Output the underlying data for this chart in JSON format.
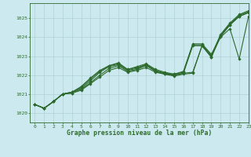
{
  "background_color": "#cde9f0",
  "grid_color": "#a8cccc",
  "line_color": "#2d6a2d",
  "title": "Graphe pression niveau de la mer (hPa)",
  "xlim": [
    -0.5,
    23
  ],
  "ylim": [
    1019.5,
    1025.8
  ],
  "yticks": [
    1020,
    1021,
    1022,
    1023,
    1024,
    1025
  ],
  "xticks": [
    0,
    1,
    2,
    3,
    4,
    5,
    6,
    7,
    8,
    9,
    10,
    11,
    12,
    13,
    14,
    15,
    16,
    17,
    18,
    19,
    20,
    21,
    22,
    23
  ],
  "lines": [
    [
      1020.45,
      1020.25,
      1020.6,
      1021.0,
      1021.05,
      1021.2,
      1021.55,
      1021.9,
      1022.25,
      1022.4,
      1022.15,
      1022.25,
      1022.4,
      1022.15,
      1022.05,
      1021.95,
      1022.05,
      1022.1,
      1023.55,
      1022.95,
      1024.05,
      1024.65,
      1025.1,
      1025.3
    ],
    [
      1020.45,
      1020.25,
      1020.6,
      1021.0,
      1021.05,
      1021.25,
      1021.6,
      1022.0,
      1022.35,
      1022.5,
      1022.2,
      1022.3,
      1022.5,
      1022.2,
      1022.05,
      1022.0,
      1022.1,
      1022.15,
      1023.55,
      1022.95,
      1024.05,
      1024.65,
      1025.1,
      1025.3
    ],
    [
      1020.45,
      1020.25,
      1020.6,
      1021.0,
      1021.1,
      1021.3,
      1021.7,
      1022.15,
      1022.45,
      1022.55,
      1022.25,
      1022.35,
      1022.55,
      1022.2,
      1022.1,
      1022.0,
      1022.1,
      1023.55,
      1023.55,
      1023.0,
      1024.1,
      1024.7,
      1025.15,
      1025.35
    ],
    [
      1020.45,
      1020.25,
      1020.6,
      1021.0,
      1021.1,
      1021.35,
      1021.8,
      1022.2,
      1022.5,
      1022.6,
      1022.3,
      1022.4,
      1022.55,
      1022.25,
      1022.1,
      1022.05,
      1022.15,
      1023.6,
      1023.6,
      1023.05,
      1024.15,
      1024.75,
      1025.2,
      1025.4
    ],
    [
      1020.45,
      1020.25,
      1020.6,
      1021.0,
      1021.1,
      1021.4,
      1021.85,
      1022.25,
      1022.5,
      1022.65,
      1022.3,
      1022.45,
      1022.6,
      1022.3,
      1022.15,
      1022.05,
      1022.2,
      1023.65,
      1023.65,
      1023.1,
      1024.0,
      1024.45,
      1022.85,
      1025.1
    ]
  ]
}
